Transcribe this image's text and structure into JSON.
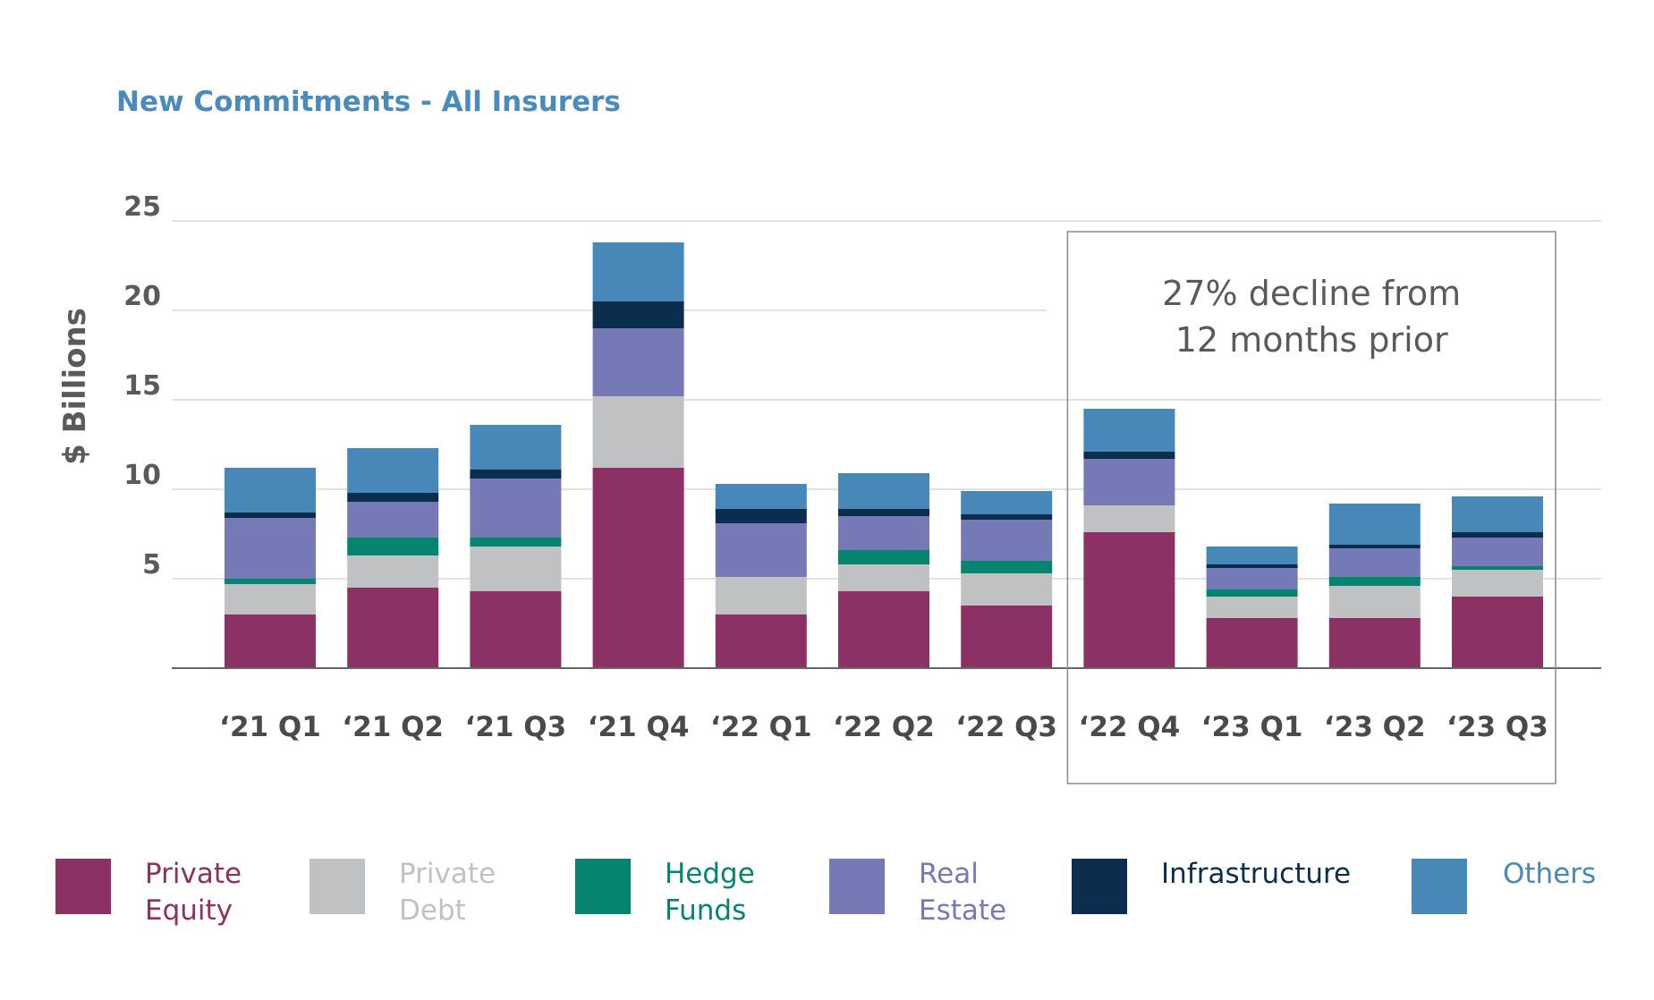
{
  "chart_data": {
    "type": "bar",
    "stacked": true,
    "title": "New Commitments - All Insurers",
    "ylabel": "$ Billions",
    "xlabel": "",
    "ylim": [
      0,
      25
    ],
    "yticks": [
      5,
      10,
      15,
      20,
      25
    ],
    "grid": true,
    "legend_position": "bottom",
    "categories": [
      "‘21 Q1",
      "‘21 Q2",
      "‘21 Q3",
      "‘21 Q4",
      "‘22 Q1",
      "‘22 Q2",
      "‘22 Q3",
      "‘22 Q4",
      "‘23 Q1",
      "‘23 Q2",
      "‘23 Q3"
    ],
    "series": [
      {
        "name": "Private Equity",
        "legend_lines": [
          "Private",
          "Equity"
        ],
        "color": "#8c3163",
        "values": [
          3.0,
          4.5,
          4.3,
          11.2,
          3.0,
          4.3,
          3.5,
          7.6,
          2.8,
          2.8,
          4.0
        ]
      },
      {
        "name": "Private Debt",
        "legend_lines": [
          "Private",
          "Debt"
        ],
        "color": "#c0c1c2",
        "values": [
          1.7,
          1.8,
          2.5,
          4.0,
          2.1,
          1.5,
          1.8,
          1.5,
          1.2,
          1.8,
          1.5
        ]
      },
      {
        "name": "Hedge Funds",
        "legend_lines": [
          "Hedge",
          "Funds"
        ],
        "color": "#058570",
        "values": [
          0.3,
          1.0,
          0.5,
          0.0,
          0.0,
          0.8,
          0.7,
          0.0,
          0.4,
          0.5,
          0.2
        ]
      },
      {
        "name": "Real Estate",
        "legend_lines": [
          "Real",
          "Estate"
        ],
        "color": "#7579b6",
        "values": [
          3.4,
          2.0,
          3.3,
          3.8,
          3.0,
          1.9,
          2.3,
          2.6,
          1.2,
          1.6,
          1.6
        ]
      },
      {
        "name": "Infrastructure",
        "legend_lines": [
          "Infrastructure"
        ],
        "color": "#0b2d4e",
        "values": [
          0.3,
          0.5,
          0.5,
          1.5,
          0.8,
          0.4,
          0.3,
          0.4,
          0.2,
          0.2,
          0.3
        ]
      },
      {
        "name": "Others",
        "legend_lines": [
          "Others"
        ],
        "color": "#4788b8",
        "values": [
          2.5,
          2.5,
          2.5,
          3.3,
          1.4,
          2.0,
          1.3,
          2.4,
          1.0,
          2.3,
          2.0
        ]
      }
    ],
    "annotation": {
      "lines": [
        "27% decline from",
        "12 months prior"
      ]
    }
  },
  "colors": {
    "title": "#4a8bbd",
    "grid": "#d8d8d8",
    "axis": "#666666",
    "annotation_border": "#8a8a8a"
  }
}
